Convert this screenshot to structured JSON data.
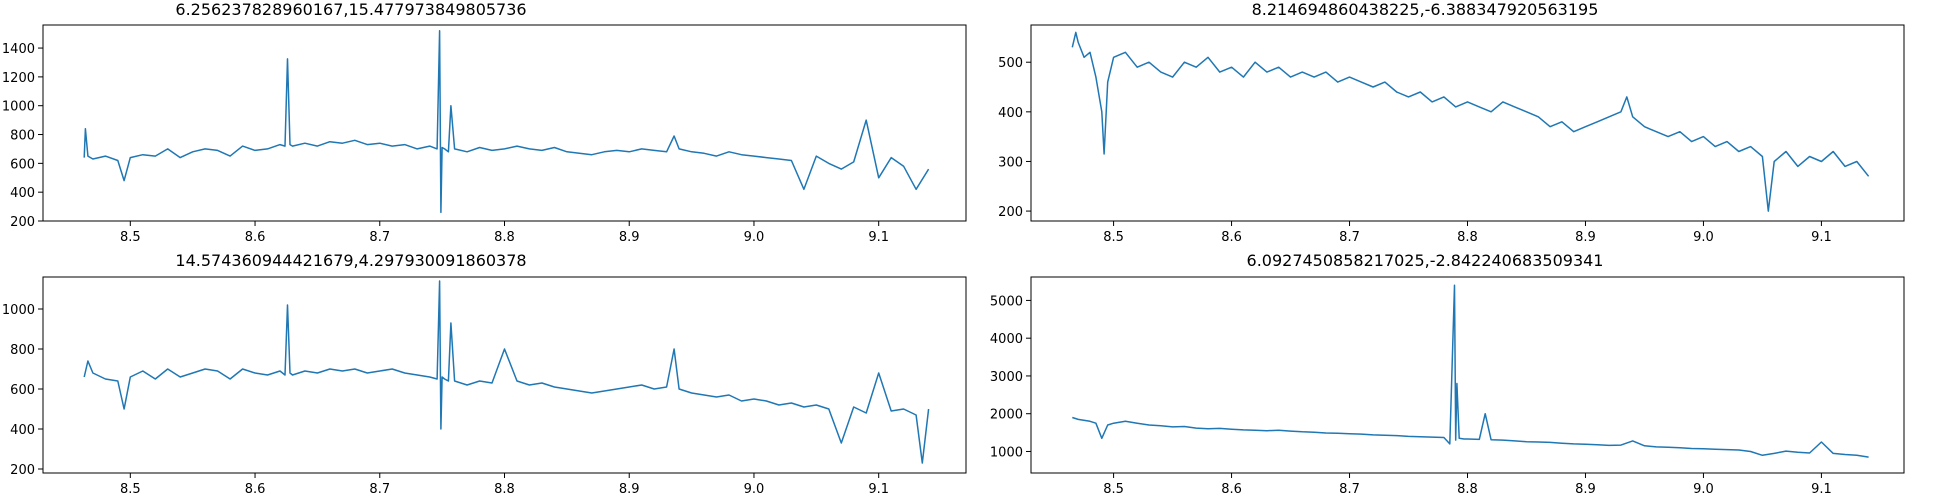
{
  "figure": {
    "background": "#ffffff",
    "line_color": "#1f77b4"
  },
  "chart_data": [
    {
      "type": "line",
      "title": "6.256237828960167,15.477973849805736",
      "xlim": [
        8.43,
        9.17
      ],
      "ylim": [
        200,
        1560
      ],
      "xticks": [
        "8.5",
        "8.6",
        "8.7",
        "8.8",
        "8.9",
        "9.0",
        "9.1"
      ],
      "xtick_values": [
        8.5,
        8.6,
        8.7,
        8.8,
        8.9,
        9.0,
        9.1
      ],
      "yticks": [
        "200",
        "400",
        "600",
        "800",
        "1000",
        "1200",
        "1400"
      ],
      "ytick_values": [
        200,
        400,
        600,
        800,
        1000,
        1200,
        1400
      ],
      "series": [
        {
          "color": "#1f77b4",
          "x": [
            8.463,
            8.464,
            8.466,
            8.47,
            8.48,
            8.49,
            8.495,
            8.5,
            8.51,
            8.52,
            8.53,
            8.54,
            8.55,
            8.56,
            8.57,
            8.58,
            8.59,
            8.6,
            8.61,
            8.62,
            8.624,
            8.626,
            8.628,
            8.63,
            8.64,
            8.65,
            8.66,
            8.67,
            8.68,
            8.69,
            8.7,
            8.71,
            8.72,
            8.73,
            8.74,
            8.746,
            8.748,
            8.749,
            8.75,
            8.752,
            8.755,
            8.757,
            8.76,
            8.77,
            8.78,
            8.79,
            8.8,
            8.81,
            8.82,
            8.83,
            8.84,
            8.85,
            8.86,
            8.87,
            8.88,
            8.89,
            8.9,
            8.91,
            8.92,
            8.93,
            8.936,
            8.94,
            8.95,
            8.96,
            8.97,
            8.98,
            8.99,
            9.0,
            9.01,
            9.02,
            9.03,
            9.04,
            9.05,
            9.06,
            9.07,
            9.08,
            9.09,
            9.1,
            9.11,
            9.12,
            9.13,
            9.14
          ],
          "y": [
            640,
            840,
            650,
            630,
            650,
            620,
            480,
            640,
            660,
            650,
            700,
            640,
            680,
            700,
            690,
            650,
            720,
            690,
            700,
            730,
            720,
            1325,
            730,
            720,
            740,
            720,
            750,
            740,
            760,
            730,
            740,
            720,
            730,
            700,
            720,
            700,
            1520,
            260,
            710,
            700,
            680,
            1000,
            700,
            680,
            710,
            690,
            700,
            720,
            700,
            690,
            710,
            680,
            670,
            660,
            680,
            690,
            680,
            700,
            690,
            680,
            790,
            700,
            680,
            670,
            650,
            680,
            660,
            650,
            640,
            630,
            620,
            420,
            650,
            600,
            560,
            610,
            900,
            500,
            640,
            580,
            420,
            560
          ]
        }
      ]
    },
    {
      "type": "line",
      "title": "8.214694860438225,-6.388347920563195",
      "xlim": [
        8.43,
        9.17
      ],
      "ylim": [
        180,
        575
      ],
      "xticks": [
        "8.5",
        "8.6",
        "8.7",
        "8.8",
        "8.9",
        "9.0",
        "9.1"
      ],
      "xtick_values": [
        8.5,
        8.6,
        8.7,
        8.8,
        8.9,
        9.0,
        9.1
      ],
      "yticks": [
        "200",
        "300",
        "400",
        "500"
      ],
      "ytick_values": [
        200,
        300,
        400,
        500
      ],
      "series": [
        {
          "color": "#1f77b4",
          "x": [
            8.465,
            8.468,
            8.47,
            8.475,
            8.48,
            8.485,
            8.49,
            8.492,
            8.495,
            8.5,
            8.51,
            8.52,
            8.53,
            8.54,
            8.55,
            8.56,
            8.57,
            8.58,
            8.59,
            8.6,
            8.61,
            8.62,
            8.63,
            8.64,
            8.65,
            8.66,
            8.67,
            8.68,
            8.69,
            8.7,
            8.71,
            8.72,
            8.73,
            8.74,
            8.75,
            8.76,
            8.77,
            8.78,
            8.79,
            8.8,
            8.81,
            8.82,
            8.83,
            8.84,
            8.85,
            8.86,
            8.87,
            8.88,
            8.89,
            8.9,
            8.91,
            8.92,
            8.93,
            8.935,
            8.94,
            8.95,
            8.96,
            8.97,
            8.98,
            8.99,
            9.0,
            9.01,
            9.02,
            9.03,
            9.04,
            9.05,
            9.055,
            9.06,
            9.07,
            9.08,
            9.09,
            9.1,
            9.11,
            9.12,
            9.13,
            9.14
          ],
          "y": [
            530,
            560,
            540,
            510,
            520,
            470,
            400,
            315,
            460,
            510,
            520,
            490,
            500,
            480,
            470,
            500,
            490,
            510,
            480,
            490,
            470,
            500,
            480,
            490,
            470,
            480,
            470,
            480,
            460,
            470,
            460,
            450,
            460,
            440,
            430,
            440,
            420,
            430,
            410,
            420,
            410,
            400,
            420,
            410,
            400,
            390,
            370,
            380,
            360,
            370,
            380,
            390,
            400,
            430,
            390,
            370,
            360,
            350,
            360,
            340,
            350,
            330,
            340,
            320,
            330,
            310,
            200,
            300,
            320,
            290,
            310,
            300,
            320,
            290,
            300,
            270
          ]
        }
      ]
    },
    {
      "type": "line",
      "title": "14.574360944421679,4.297930091860378",
      "xlim": [
        8.43,
        9.17
      ],
      "ylim": [
        180,
        1160
      ],
      "xticks": [
        "8.5",
        "8.6",
        "8.7",
        "8.8",
        "8.9",
        "9.0",
        "9.1"
      ],
      "xtick_values": [
        8.5,
        8.6,
        8.7,
        8.8,
        8.9,
        9.0,
        9.1
      ],
      "yticks": [
        "200",
        "400",
        "600",
        "800",
        "1000"
      ],
      "ytick_values": [
        200,
        400,
        600,
        800,
        1000
      ],
      "series": [
        {
          "color": "#1f77b4",
          "x": [
            8.463,
            8.466,
            8.47,
            8.48,
            8.49,
            8.495,
            8.5,
            8.51,
            8.52,
            8.53,
            8.54,
            8.55,
            8.56,
            8.57,
            8.58,
            8.59,
            8.6,
            8.61,
            8.62,
            8.624,
            8.626,
            8.628,
            8.63,
            8.64,
            8.65,
            8.66,
            8.67,
            8.68,
            8.69,
            8.7,
            8.71,
            8.72,
            8.73,
            8.74,
            8.746,
            8.748,
            8.749,
            8.75,
            8.752,
            8.755,
            8.757,
            8.76,
            8.77,
            8.78,
            8.79,
            8.8,
            8.81,
            8.82,
            8.83,
            8.84,
            8.85,
            8.86,
            8.87,
            8.88,
            8.89,
            8.9,
            8.91,
            8.92,
            8.93,
            8.936,
            8.94,
            8.95,
            8.96,
            8.97,
            8.98,
            8.99,
            9.0,
            9.01,
            9.02,
            9.03,
            9.04,
            9.05,
            9.06,
            9.07,
            9.08,
            9.09,
            9.1,
            9.11,
            9.12,
            9.13,
            9.135,
            9.14
          ],
          "y": [
            660,
            740,
            680,
            650,
            640,
            500,
            660,
            690,
            650,
            700,
            660,
            680,
            700,
            690,
            650,
            700,
            680,
            670,
            690,
            670,
            1020,
            680,
            670,
            690,
            680,
            700,
            690,
            700,
            680,
            690,
            700,
            680,
            670,
            660,
            650,
            1140,
            400,
            660,
            650,
            640,
            930,
            640,
            620,
            640,
            630,
            800,
            640,
            620,
            630,
            610,
            600,
            590,
            580,
            590,
            600,
            610,
            620,
            600,
            610,
            800,
            600,
            580,
            570,
            560,
            570,
            540,
            550,
            540,
            520,
            530,
            510,
            520,
            500,
            330,
            510,
            480,
            680,
            490,
            500,
            470,
            230,
            500
          ]
        }
      ]
    },
    {
      "type": "line",
      "title": "6.0927450858217025,-2.842240683509341",
      "xlim": [
        8.43,
        9.17
      ],
      "ylim": [
        430,
        5620
      ],
      "xticks": [
        "8.5",
        "8.6",
        "8.7",
        "8.8",
        "8.9",
        "9.0",
        "9.1"
      ],
      "xtick_values": [
        8.5,
        8.6,
        8.7,
        8.8,
        8.9,
        9.0,
        9.1
      ],
      "yticks": [
        "1000",
        "2000",
        "3000",
        "4000",
        "5000"
      ],
      "ytick_values": [
        1000,
        2000,
        3000,
        4000,
        5000
      ],
      "series": [
        {
          "color": "#1f77b4",
          "x": [
            8.465,
            8.47,
            8.48,
            8.485,
            8.49,
            8.495,
            8.5,
            8.51,
            8.52,
            8.53,
            8.54,
            8.55,
            8.56,
            8.57,
            8.58,
            8.59,
            8.6,
            8.61,
            8.62,
            8.63,
            8.64,
            8.65,
            8.66,
            8.67,
            8.68,
            8.69,
            8.7,
            8.71,
            8.72,
            8.73,
            8.74,
            8.75,
            8.76,
            8.77,
            8.78,
            8.785,
            8.789,
            8.79,
            8.791,
            8.793,
            8.795,
            8.797,
            8.8,
            8.81,
            8.815,
            8.82,
            8.83,
            8.84,
            8.85,
            8.86,
            8.87,
            8.88,
            8.89,
            8.9,
            8.91,
            8.92,
            8.93,
            8.94,
            8.95,
            8.96,
            8.97,
            8.98,
            8.99,
            9.0,
            9.01,
            9.02,
            9.03,
            9.04,
            9.05,
            9.06,
            9.07,
            9.08,
            9.09,
            9.1,
            9.11,
            9.12,
            9.13,
            9.14
          ],
          "y": [
            1900,
            1850,
            1800,
            1750,
            1350,
            1700,
            1750,
            1800,
            1750,
            1700,
            1680,
            1650,
            1660,
            1620,
            1600,
            1610,
            1590,
            1570,
            1560,
            1550,
            1560,
            1540,
            1520,
            1510,
            1490,
            1480,
            1470,
            1460,
            1440,
            1430,
            1420,
            1400,
            1390,
            1380,
            1370,
            1200,
            5400,
            1300,
            2800,
            1350,
            1340,
            1330,
            1330,
            1320,
            2000,
            1310,
            1300,
            1280,
            1260,
            1250,
            1240,
            1220,
            1200,
            1190,
            1180,
            1160,
            1170,
            1280,
            1150,
            1120,
            1110,
            1100,
            1080,
            1070,
            1060,
            1050,
            1040,
            1000,
            900,
            950,
            1010,
            980,
            960,
            1250,
            950,
            920,
            900,
            850
          ]
        }
      ]
    }
  ]
}
